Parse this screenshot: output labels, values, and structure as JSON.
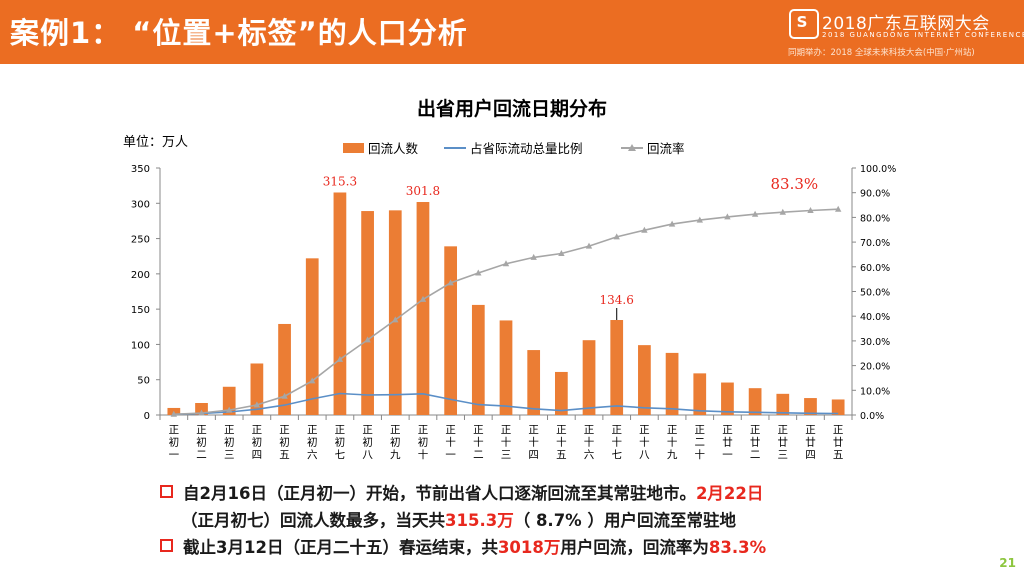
{
  "slide": {
    "title": "案例1：  “位置+标签”的人口分析",
    "event_name": "2018广东互联网大会",
    "event_sub": "2018 GUANGDONG INTERNET CONFERENCE",
    "event_note": "同期举办：2018 全球未来科技大会(中国·广州站)",
    "page_number": "21"
  },
  "bullets": [
    {
      "parts": [
        {
          "text": "自2月16日（正月初一）开始，节前出省人口逐渐回流至其常驻地市。",
          "red": false
        },
        {
          "text": "2月22日",
          "red": true
        }
      ]
    },
    {
      "parts": [
        {
          "text": "（正月初七）回流人数最多，当天共",
          "red": false
        },
        {
          "text": "315.3万",
          "red": true
        },
        {
          "text": "（ 8.7% ）用户回流至常驻地",
          "red": false
        }
      ]
    },
    {
      "parts": [
        {
          "text": "截止3月12日（正月二十五）春运结束，共",
          "red": false
        },
        {
          "text": "3018万",
          "red": true
        },
        {
          "text": "用户回流，回流率为",
          "red": false
        },
        {
          "text": "83.3%",
          "red": true
        }
      ]
    }
  ],
  "colors": {
    "header": "#EB6D22",
    "bar": "#EB7D34",
    "share_line": "#5B8FC7",
    "rate_line": "#A6A6A6",
    "highlight": "#E8281E",
    "page_number": "#8DC63F"
  },
  "chart_data": {
    "type": "bar",
    "title": "出省用户回流日期分布",
    "unit_label": "单位：万人",
    "categories": [
      "正初一",
      "正初二",
      "正初三",
      "正初四",
      "正初五",
      "正初六",
      "正初七",
      "正初八",
      "正初九",
      "正初十",
      "正十一",
      "正十二",
      "正十三",
      "正十四",
      "正十五",
      "正十六",
      "正十七",
      "正十八",
      "正十九",
      "正二十",
      "正廿一",
      "正廿二",
      "正廿三",
      "正廿四",
      "正廿五"
    ],
    "series": [
      {
        "name": "回流人数",
        "type": "bar",
        "axis": "left",
        "values": [
          10,
          17,
          40,
          73,
          129,
          222,
          315.3,
          289,
          290,
          301.8,
          239,
          156,
          134,
          92,
          61,
          106,
          134.6,
          99,
          88,
          59,
          46,
          38,
          30,
          24,
          22
        ]
      },
      {
        "name": "占省际流动总量比例",
        "type": "line",
        "axis": "right",
        "values": [
          0.3,
          0.6,
          1.2,
          2.3,
          4.0,
          6.5,
          8.7,
          8.1,
          8.2,
          8.6,
          6.3,
          4.2,
          3.6,
          2.5,
          1.8,
          2.8,
          3.7,
          2.9,
          2.5,
          1.7,
          1.3,
          1.1,
          0.9,
          0.7,
          0.6
        ]
      },
      {
        "name": "回流率",
        "type": "line",
        "axis": "right",
        "values": [
          0.3,
          0.8,
          2.0,
          4.1,
          7.6,
          13.8,
          22.5,
          30.4,
          38.5,
          46.8,
          53.5,
          57.5,
          61.2,
          63.8,
          65.4,
          68.4,
          72.1,
          74.8,
          77.3,
          78.9,
          80.2,
          81.3,
          82.1,
          82.8,
          83.3
        ]
      }
    ],
    "y_left": {
      "range": [
        0,
        350
      ],
      "ticks": [
        "0",
        "50",
        "100",
        "150",
        "200",
        "250",
        "300",
        "350"
      ]
    },
    "y_right": {
      "range": [
        0,
        100
      ],
      "ticks": [
        "0.0%",
        "10.0%",
        "20.0%",
        "30.0%",
        "40.0%",
        "50.0%",
        "60.0%",
        "70.0%",
        "80.0%",
        "90.0%",
        "100.0%"
      ]
    },
    "annotations": [
      {
        "index": 6,
        "label": "315.3"
      },
      {
        "index": 9,
        "label": "301.8"
      },
      {
        "index": 16,
        "label": "134.6"
      },
      {
        "index": 24,
        "label": "83.3%",
        "series": "回流率"
      }
    ],
    "grid": false,
    "legend_position": "top"
  }
}
